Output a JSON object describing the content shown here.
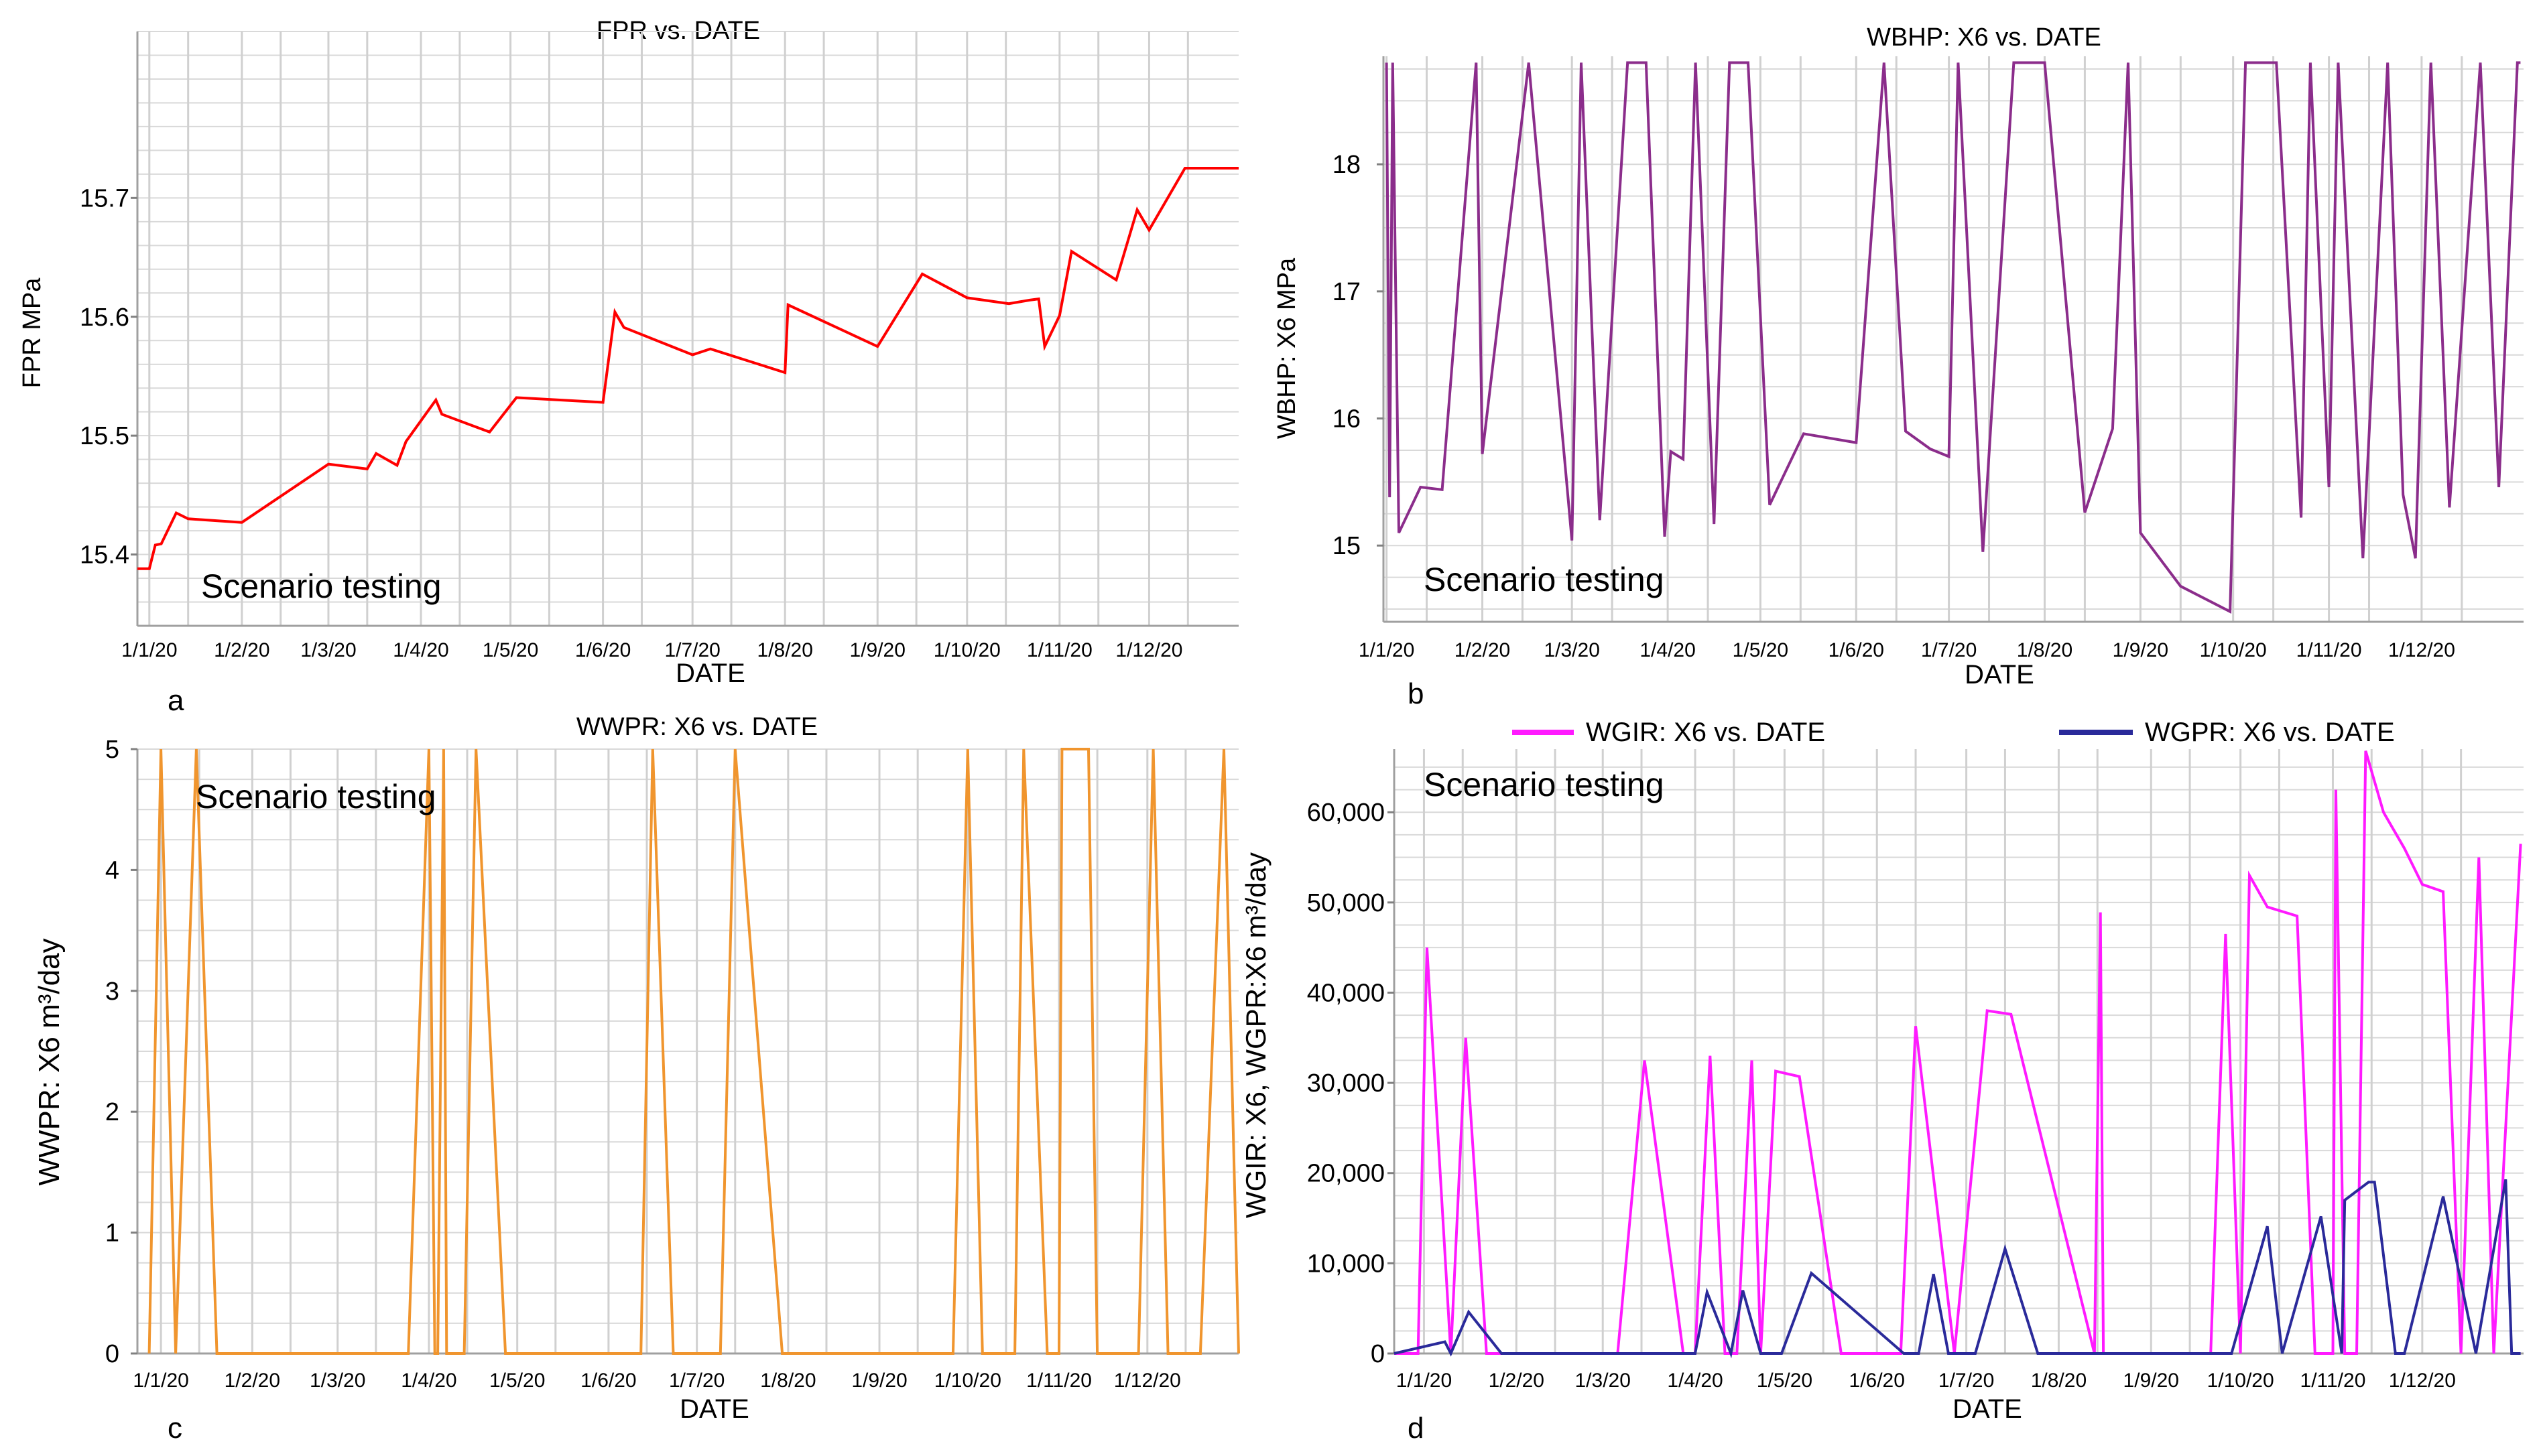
{
  "chart_data": [
    {
      "panel_label": "a",
      "type": "line",
      "title": "FPR vs. DATE",
      "xlabel": "DATE",
      "ylabel": "FPR MPa",
      "annotation": "Scenario testing",
      "x_ticks": [
        "1/1/20",
        "1/2/20",
        "1/3/20",
        "1/4/20",
        "1/5/20",
        "1/6/20",
        "1/7/20",
        "1/8/20",
        "1/9/20",
        "1/10/20",
        "1/11/20",
        "1/12/20"
      ],
      "y_ticks": [
        "15.4",
        "15.5",
        "15.6",
        "15.7"
      ],
      "ylim": [
        15.34,
        15.84
      ],
      "xlim": [
        "2019-12-28",
        "2020-12-31"
      ],
      "grid": true,
      "series": [
        {
          "name": "",
          "color": "#ff0000",
          "x": [
            "2019-12-28",
            "2020-01-01",
            "2020-01-03",
            "2020-01-05",
            "2020-01-10",
            "2020-01-14",
            "2020-02-01",
            "2020-03-01",
            "2020-03-14",
            "2020-03-17",
            "2020-03-24",
            "2020-03-27",
            "2020-04-06",
            "2020-04-08",
            "2020-04-24",
            "2020-05-03",
            "2020-06-01",
            "2020-06-05",
            "2020-06-08",
            "2020-07-01",
            "2020-07-07",
            "2020-08-01",
            "2020-08-02",
            "2020-09-01",
            "2020-09-16",
            "2020-10-01",
            "2020-10-15",
            "2020-10-22",
            "2020-10-25",
            "2020-10-27",
            "2020-11-01",
            "2020-11-05",
            "2020-11-20",
            "2020-11-27",
            "2020-12-01",
            "2020-12-13",
            "2020-12-18",
            "2020-12-31"
          ],
          "values": [
            15.388,
            15.388,
            15.408,
            15.409,
            15.435,
            15.43,
            15.427,
            15.476,
            15.472,
            15.485,
            15.475,
            15.495,
            15.53,
            15.518,
            15.503,
            15.532,
            15.528,
            15.604,
            15.591,
            15.568,
            15.573,
            15.553,
            15.61,
            15.575,
            15.636,
            15.616,
            15.611,
            15.614,
            15.615,
            15.575,
            15.601,
            15.655,
            15.631,
            15.69,
            15.673,
            15.725,
            15.725,
            15.725
          ]
        }
      ]
    },
    {
      "panel_label": "b",
      "type": "line",
      "title": "WBHP: X6 vs. DATE",
      "xlabel": "DATE",
      "ylabel": "WBHP: X6 MPa",
      "annotation": "Scenario testing",
      "x_ticks": [
        "1/1/20",
        "1/2/20",
        "1/3/20",
        "1/4/20",
        "1/5/20",
        "1/6/20",
        "1/7/20",
        "1/8/20",
        "1/9/20",
        "1/10/20",
        "1/11/20",
        "1/12/20"
      ],
      "y_ticks": [
        "15",
        "16",
        "17",
        "18"
      ],
      "ylim": [
        14.4,
        18.85
      ],
      "xlim": [
        "2019-12-31",
        "2021-01-03"
      ],
      "grid": true,
      "series": [
        {
          "name": "",
          "color": "#8b2d8b",
          "x": [
            "2020-01-01",
            "2020-01-02",
            "2020-01-03",
            "2020-01-05",
            "2020-01-12",
            "2020-01-19",
            "2020-01-30",
            "2020-02-01",
            "2020-02-16",
            "2020-03-01",
            "2020-03-04",
            "2020-03-10",
            "2020-03-19",
            "2020-03-25",
            "2020-03-31",
            "2020-04-02",
            "2020-04-06",
            "2020-04-10",
            "2020-04-16",
            "2020-04-21",
            "2020-04-27",
            "2020-05-04",
            "2020-05-15",
            "2020-06-01",
            "2020-06-10",
            "2020-06-17",
            "2020-06-25",
            "2020-07-01",
            "2020-07-04",
            "2020-07-12",
            "2020-07-22",
            "2020-08-01",
            "2020-08-14",
            "2020-08-23",
            "2020-08-28",
            "2020-09-01",
            "2020-09-14",
            "2020-09-30",
            "2020-10-05",
            "2020-10-15",
            "2020-10-23",
            "2020-10-26",
            "2020-11-01",
            "2020-11-04",
            "2020-11-12",
            "2020-11-20",
            "2020-11-25",
            "2020-11-29",
            "2020-12-04",
            "2020-12-10",
            "2020-12-20",
            "2020-12-26",
            "2021-01-01",
            "2021-01-02"
          ],
          "values": [
            18.8,
            15.38,
            18.8,
            15.1,
            15.46,
            15.44,
            18.8,
            15.72,
            18.8,
            15.04,
            18.8,
            15.2,
            18.8,
            18.8,
            15.07,
            15.74,
            15.68,
            18.8,
            15.17,
            18.8,
            18.8,
            15.32,
            15.88,
            15.81,
            18.8,
            15.9,
            15.76,
            15.7,
            18.8,
            14.95,
            18.8,
            18.8,
            15.26,
            15.92,
            18.8,
            15.1,
            14.68,
            14.48,
            18.8,
            18.8,
            15.22,
            18.8,
            15.46,
            18.8,
            14.9,
            18.8,
            15.4,
            14.9,
            18.8,
            15.3,
            18.8,
            15.46,
            18.8,
            18.8
          ]
        }
      ]
    },
    {
      "panel_label": "c",
      "type": "line",
      "title": "WWPR: X6 vs. DATE",
      "xlabel": "DATE",
      "ylabel": "WWPR: X6  m³/day",
      "annotation": "Scenario testing",
      "x_ticks": [
        "1/1/20",
        "1/2/20",
        "1/3/20",
        "1/4/20",
        "1/5/20",
        "1/6/20",
        "1/7/20",
        "1/8/20",
        "1/9/20",
        "1/10/20",
        "1/11/20",
        "1/12/20"
      ],
      "y_ticks": [
        "0",
        "1",
        "2",
        "3",
        "4",
        "5"
      ],
      "ylim": [
        0,
        5
      ],
      "xlim": [
        "2019-12-24",
        "2021-01-01"
      ],
      "grid": true,
      "series": [
        {
          "name": "",
          "color": "#f0952e",
          "x": [
            "2019-12-28",
            "2020-01-01",
            "2020-01-06",
            "2020-01-13",
            "2020-01-20",
            "2020-02-07",
            "2020-03-25",
            "2020-04-01",
            "2020-04-03",
            "2020-04-04",
            "2020-04-06",
            "2020-04-07",
            "2020-04-13",
            "2020-04-17",
            "2020-04-27",
            "2020-05-14",
            "2020-06-12",
            "2020-06-16",
            "2020-06-23",
            "2020-07-09",
            "2020-07-14",
            "2020-07-30",
            "2020-09-26",
            "2020-10-01",
            "2020-10-06",
            "2020-10-17",
            "2020-10-20",
            "2020-10-28",
            "2020-11-01",
            "2020-11-02",
            "2020-11-11",
            "2020-11-14",
            "2020-11-28",
            "2020-12-03",
            "2020-12-08",
            "2020-12-19",
            "2020-12-27",
            "2021-01-01"
          ],
          "values": [
            0,
            5,
            0,
            5,
            0,
            0,
            0,
            5,
            0,
            0,
            5,
            0,
            0,
            5,
            0,
            0,
            0,
            5,
            0,
            0,
            5,
            0,
            0,
            5,
            0,
            0,
            5,
            0,
            0,
            5,
            5,
            0,
            0,
            5,
            0,
            0,
            5,
            0
          ]
        }
      ]
    },
    {
      "panel_label": "d",
      "type": "line",
      "title": "",
      "xlabel": "DATE",
      "ylabel": "WGIR: X6, WGPR:X6 m³/day",
      "annotation": "Scenario testing",
      "x_ticks": [
        "1/1/20",
        "1/2/20",
        "1/3/20",
        "1/4/20",
        "1/5/20",
        "1/6/20",
        "1/7/20",
        "1/8/20",
        "1/9/20",
        "1/10/20",
        "1/11/20",
        "1/12/20"
      ],
      "y_ticks": [
        "0",
        "10,000",
        "20,000",
        "30,000",
        "40,000",
        "50,000",
        "60,000"
      ],
      "ylim": [
        0,
        67000
      ],
      "xlim": [
        "2019-12-22",
        "2021-01-04"
      ],
      "legend_position": "top",
      "grid": true,
      "series": [
        {
          "name": "WGIR: X6 vs. DATE",
          "color": "#ff1aff",
          "x": [
            "2019-12-22",
            "2019-12-30",
            "2020-01-02",
            "2020-01-10",
            "2020-01-15",
            "2020-01-22",
            "2020-02-10",
            "2020-03-06",
            "2020-03-15",
            "2020-03-28",
            "2020-04-01",
            "2020-04-06",
            "2020-04-11",
            "2020-04-15",
            "2020-04-20",
            "2020-04-23",
            "2020-04-28",
            "2020-05-06",
            "2020-05-20",
            "2020-06-09",
            "2020-06-14",
            "2020-06-27",
            "2020-07-08",
            "2020-07-16",
            "2020-08-13",
            "2020-08-15",
            "2020-08-16",
            "2020-09-14",
            "2020-09-21",
            "2020-09-26",
            "2020-10-01",
            "2020-10-04",
            "2020-10-10",
            "2020-10-20",
            "2020-10-26",
            "2020-11-01",
            "2020-11-02",
            "2020-11-05",
            "2020-11-08",
            "2020-11-09",
            "2020-11-12",
            "2020-11-18",
            "2020-11-25",
            "2020-12-01",
            "2020-12-08",
            "2020-12-14",
            "2020-12-20",
            "2020-12-25",
            "2021-01-03"
          ],
          "values": [
            0,
            0,
            45000,
            0,
            35000,
            0,
            0,
            0,
            32500,
            0,
            0,
            33000,
            0,
            0,
            32500,
            0,
            31300,
            30700,
            0,
            0,
            36300,
            0,
            38000,
            37600,
            0,
            48900,
            0,
            0,
            0,
            46500,
            0,
            53000,
            49500,
            48500,
            0,
            0,
            62500,
            0,
            0,
            0,
            66800,
            60000,
            56000,
            52000,
            51200,
            0,
            55000,
            0,
            56500
          ]
        },
        {
          "name": "WGPR: X6 vs. DATE",
          "color": "#2a2a9a",
          "x": [
            "2019-12-22",
            "2020-01-08",
            "2020-01-10",
            "2020-01-16",
            "2020-01-27",
            "2020-02-01",
            "2020-03-27",
            "2020-04-01",
            "2020-04-05",
            "2020-04-13",
            "2020-04-17",
            "2020-04-23",
            "2020-04-30",
            "2020-05-10",
            "2020-06-10",
            "2020-06-15",
            "2020-06-20",
            "2020-06-25",
            "2020-07-04",
            "2020-07-14",
            "2020-07-25",
            "2020-09-13",
            "2020-09-18",
            "2020-09-28",
            "2020-10-10",
            "2020-10-15",
            "2020-10-28",
            "2020-11-04",
            "2020-11-05",
            "2020-11-13",
            "2020-11-15",
            "2020-11-22",
            "2020-11-25",
            "2020-12-08",
            "2020-12-19",
            "2020-12-29",
            "2020-12-31",
            "2021-01-03"
          ],
          "values": [
            0,
            1300,
            0,
            4600,
            0,
            0,
            0,
            0,
            6800,
            0,
            7000,
            0,
            0,
            8900,
            0,
            0,
            8800,
            0,
            0,
            11600,
            0,
            0,
            0,
            0,
            14100,
            0,
            15200,
            0,
            17000,
            19000,
            19000,
            0,
            0,
            17400,
            0,
            19300,
            0,
            0
          ]
        }
      ]
    }
  ]
}
